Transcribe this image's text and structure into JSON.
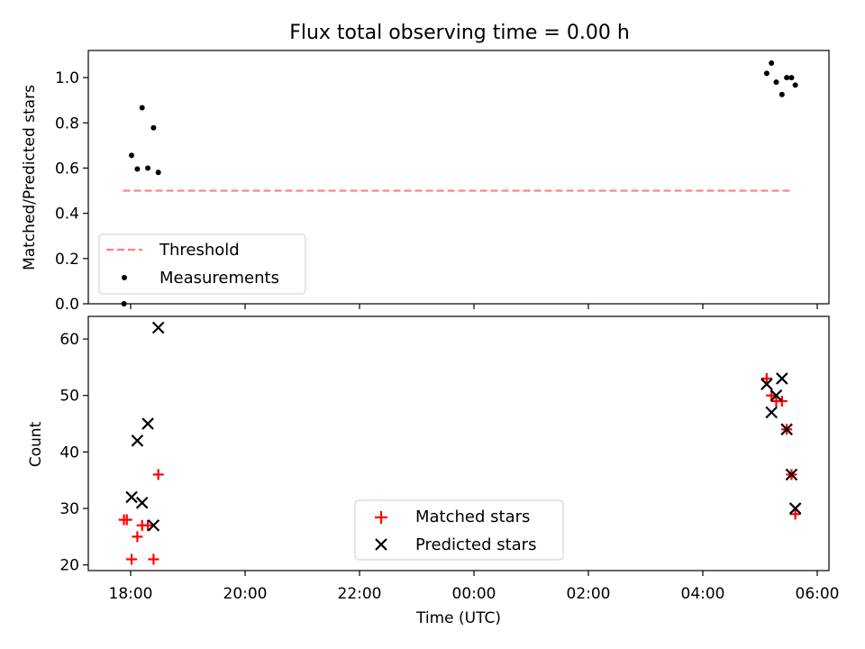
{
  "figure": {
    "title": "Flux total observing time = 0.00 h",
    "xlabel": "Time (UTC)",
    "x_ticks": [
      "18:00",
      "20:00",
      "22:00",
      "00:00",
      "02:00",
      "04:00",
      "06:00"
    ]
  },
  "chart_data": [
    {
      "type": "scatter",
      "ylabel": "Matched/Predicted stars",
      "ylim": [
        0,
        1.12
      ],
      "y_ticks": [
        "0.0",
        "0.2",
        "0.4",
        "0.6",
        "0.8",
        "1.0"
      ],
      "grid": false,
      "legend_position": "lower-left",
      "threshold": {
        "name": "Threshold",
        "value": 0.5,
        "x_start": "17:52",
        "x_end": "05:35",
        "color": "#ff7f7f",
        "style": "dashed"
      },
      "series": [
        {
          "name": "Measurements",
          "marker": "dot",
          "color": "#000000",
          "points": [
            {
              "x": "17:53",
              "y": 0.0
            },
            {
              "x": "18:01",
              "y": 0.656
            },
            {
              "x": "18:07",
              "y": 0.596
            },
            {
              "x": "18:12",
              "y": 0.867
            },
            {
              "x": "18:18",
              "y": 0.6
            },
            {
              "x": "18:24",
              "y": 0.778
            },
            {
              "x": "18:29",
              "y": 0.581
            },
            {
              "x": "05:07",
              "y": 1.019
            },
            {
              "x": "05:12",
              "y": 1.064
            },
            {
              "x": "05:17",
              "y": 0.98
            },
            {
              "x": "05:23",
              "y": 0.925
            },
            {
              "x": "05:28",
              "y": 1.0
            },
            {
              "x": "05:33",
              "y": 1.0
            },
            {
              "x": "05:37",
              "y": 0.967
            }
          ]
        }
      ]
    },
    {
      "type": "scatter",
      "ylabel": "Count",
      "ylim": [
        19,
        64
      ],
      "y_ticks": [
        "20",
        "30",
        "40",
        "50",
        "60"
      ],
      "grid": false,
      "legend_position": "lower-center",
      "series": [
        {
          "name": "Matched stars",
          "marker": "plus",
          "color": "#ff0000",
          "points": [
            {
              "x": "17:53",
              "y": 28
            },
            {
              "x": "17:56",
              "y": 28
            },
            {
              "x": "18:01",
              "y": 21
            },
            {
              "x": "18:07",
              "y": 25
            },
            {
              "x": "18:12",
              "y": 27
            },
            {
              "x": "18:18",
              "y": 27
            },
            {
              "x": "18:24",
              "y": 21
            },
            {
              "x": "18:29",
              "y": 36
            },
            {
              "x": "05:07",
              "y": 53
            },
            {
              "x": "05:12",
              "y": 50
            },
            {
              "x": "05:17",
              "y": 49
            },
            {
              "x": "05:23",
              "y": 49
            },
            {
              "x": "05:28",
              "y": 44
            },
            {
              "x": "05:33",
              "y": 36
            },
            {
              "x": "05:37",
              "y": 29
            }
          ]
        },
        {
          "name": "Predicted stars",
          "marker": "x",
          "color": "#000000",
          "points": [
            {
              "x": "18:01",
              "y": 32
            },
            {
              "x": "18:07",
              "y": 42
            },
            {
              "x": "18:12",
              "y": 31
            },
            {
              "x": "18:18",
              "y": 45
            },
            {
              "x": "18:24",
              "y": 27
            },
            {
              "x": "18:29",
              "y": 62
            },
            {
              "x": "05:07",
              "y": 52
            },
            {
              "x": "05:12",
              "y": 47
            },
            {
              "x": "05:17",
              "y": 50
            },
            {
              "x": "05:23",
              "y": 53
            },
            {
              "x": "05:28",
              "y": 44
            },
            {
              "x": "05:33",
              "y": 36
            },
            {
              "x": "05:37",
              "y": 30
            }
          ]
        }
      ]
    }
  ]
}
